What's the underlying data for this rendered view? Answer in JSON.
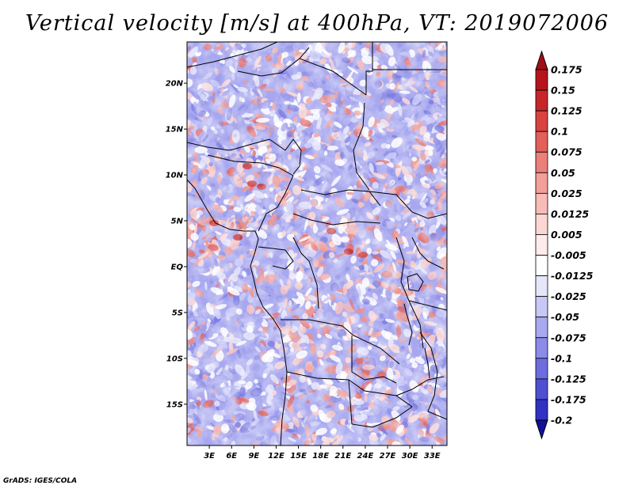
{
  "title": "Vertical velocity [m/s] at 400hPa, VT: 2019072006",
  "credit": "GrADS: IGES/COLA",
  "map": {
    "lat_range": [
      -19.5,
      24.5
    ],
    "lon_range": [
      0,
      35
    ],
    "lat_ticks": [
      {
        "value": 20,
        "label": "20N"
      },
      {
        "value": 15,
        "label": "15N"
      },
      {
        "value": 10,
        "label": "10N"
      },
      {
        "value": 5,
        "label": "5N"
      },
      {
        "value": 0,
        "label": "EQ"
      },
      {
        "value": -5,
        "label": "5S"
      },
      {
        "value": -10,
        "label": "10S"
      },
      {
        "value": -15,
        "label": "15S"
      }
    ],
    "lon_ticks": [
      {
        "value": 3,
        "label": "3E"
      },
      {
        "value": 6,
        "label": "6E"
      },
      {
        "value": 9,
        "label": "9E"
      },
      {
        "value": 12,
        "label": "12E"
      },
      {
        "value": 15,
        "label": "15E"
      },
      {
        "value": 18,
        "label": "18E"
      },
      {
        "value": 21,
        "label": "21E"
      },
      {
        "value": 24,
        "label": "24E"
      },
      {
        "value": 27,
        "label": "27E"
      },
      {
        "value": 30,
        "label": "30E"
      },
      {
        "value": 33,
        "label": "33E"
      }
    ]
  },
  "colorbar": {
    "levels": [
      {
        "label": "0.175",
        "color": "#b5141a"
      },
      {
        "label": "0.15",
        "color": "#c8252a"
      },
      {
        "label": "0.125",
        "color": "#d9423f"
      },
      {
        "label": "0.1",
        "color": "#e35f5a"
      },
      {
        "label": "0.075",
        "color": "#ec7f7a"
      },
      {
        "label": "0.05",
        "color": "#f29e99"
      },
      {
        "label": "0.025",
        "color": "#f7bcb8"
      },
      {
        "label": "0.0125",
        "color": "#fbd7d4"
      },
      {
        "label": "0.005",
        "color": "#fdeceb"
      },
      {
        "label": "-0.005",
        "color": "#ffffff"
      },
      {
        "label": "-0.0125",
        "color": "#e6e6fb"
      },
      {
        "label": "-0.025",
        "color": "#c8c8f6"
      },
      {
        "label": "-0.05",
        "color": "#a9a9f0"
      },
      {
        "label": "-0.075",
        "color": "#8b8be9"
      },
      {
        "label": "-0.1",
        "color": "#6d6de0"
      },
      {
        "label": "-0.125",
        "color": "#4f4fd4"
      },
      {
        "label": "-0.175",
        "color": "#3131c4"
      },
      {
        "label": "-0.2",
        "color": "#1b1bb0"
      }
    ],
    "top_color": "#a01017",
    "bottom_color": "#10109a"
  }
}
